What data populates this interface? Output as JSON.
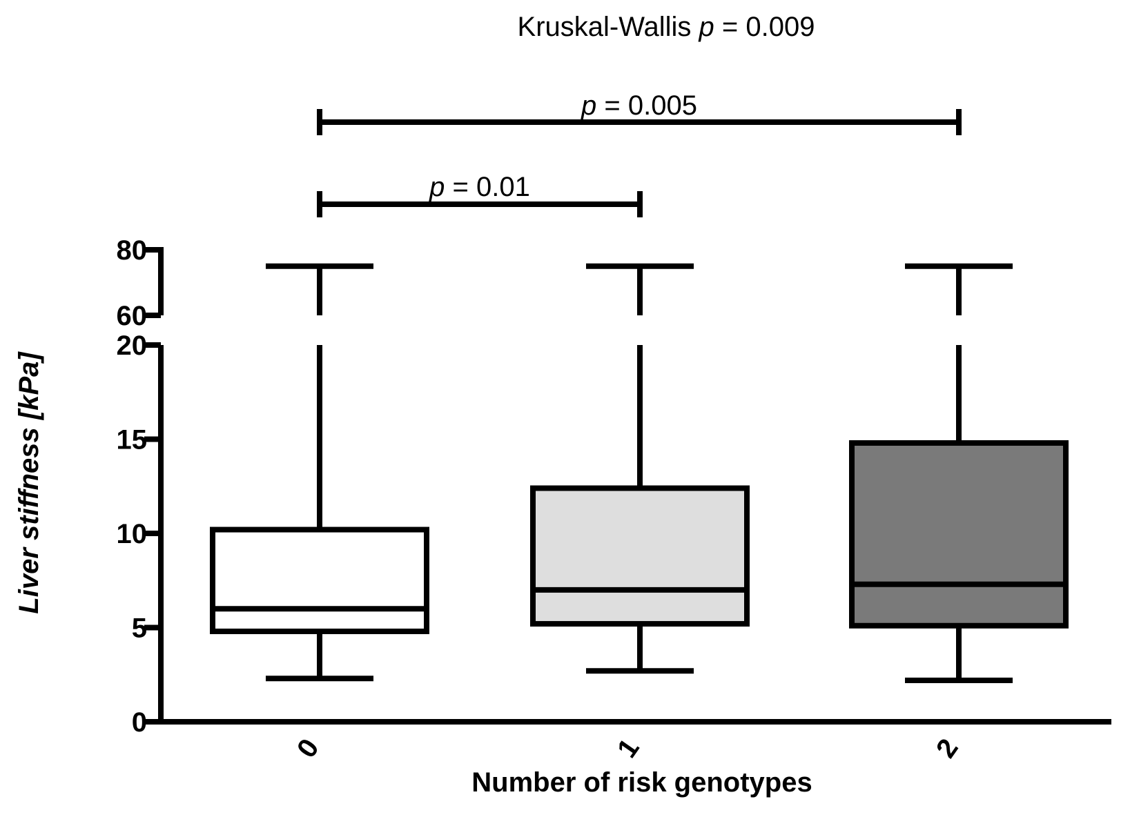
{
  "chart_data": {
    "type": "boxplot",
    "title": "Kruskal-Wallis p = 0.009",
    "title_parts": {
      "prefix": "Kruskal-Wallis ",
      "p_symbol": "p",
      "suffix": " = 0.009"
    },
    "xlabel": "Number of risk genotypes",
    "ylabel": "Liver stiffness [kPa]",
    "categories": [
      "0",
      "1",
      "2"
    ],
    "y_axis": {
      "broken": true,
      "lower_segment": {
        "range": [
          0,
          20
        ],
        "ticks": [
          "0",
          "5",
          "10",
          "15",
          "20"
        ]
      },
      "upper_segment": {
        "range": [
          60,
          80
        ],
        "ticks": [
          "60",
          "80"
        ]
      }
    },
    "boxes": [
      {
        "category": "0",
        "whisker_low": 2.3,
        "q1": 4.8,
        "median": 6.0,
        "q3": 10.2,
        "whisker_high": 75,
        "fill": "#ffffff"
      },
      {
        "category": "1",
        "whisker_low": 2.7,
        "q1": 5.2,
        "median": 7.0,
        "q3": 12.4,
        "whisker_high": 75,
        "fill": "#dedede"
      },
      {
        "category": "2",
        "whisker_low": 2.2,
        "q1": 5.1,
        "median": 7.3,
        "q3": 14.8,
        "whisker_high": 75,
        "fill": "#7a7a7a"
      }
    ],
    "comparisons": [
      {
        "from": "0",
        "to": "2",
        "p_symbol": "p",
        "label": " = 0.005"
      },
      {
        "from": "0",
        "to": "1",
        "p_symbol": "p",
        "label": " = 0.01"
      }
    ]
  }
}
